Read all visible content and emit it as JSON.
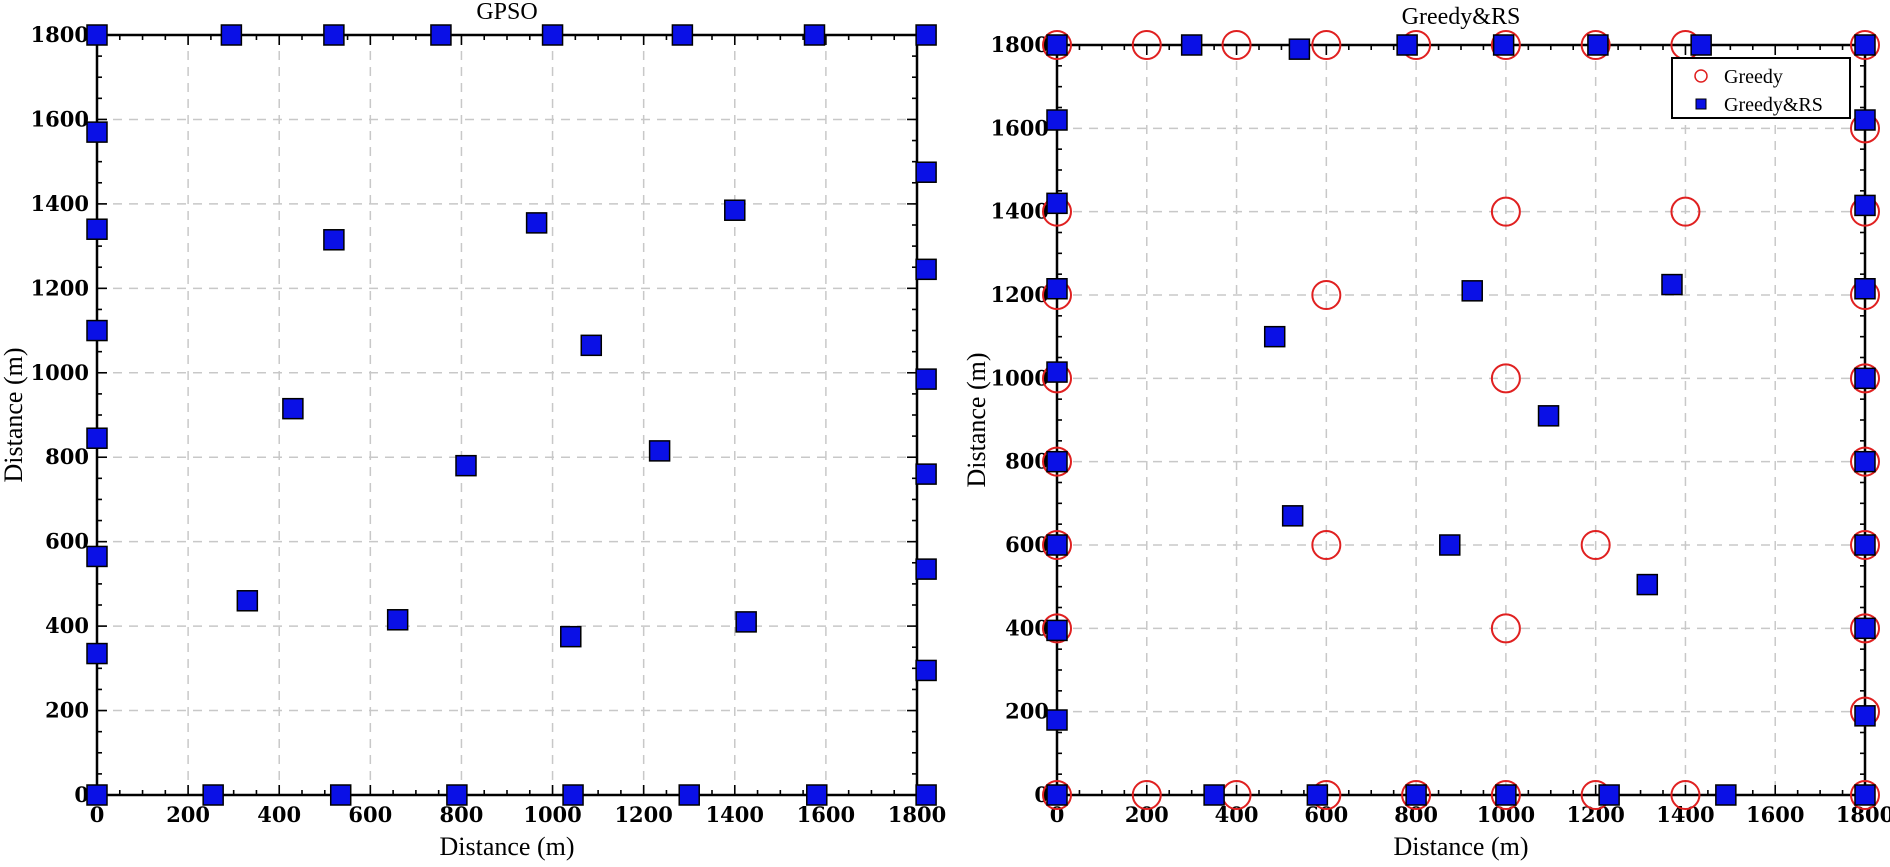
{
  "chart_data": [
    {
      "type": "scatter",
      "title": "GPSO",
      "xlabel": "Distance (m)",
      "ylabel": "Distance (m)",
      "xlim": [
        0,
        1800
      ],
      "ylim": [
        0,
        1800
      ],
      "xticks": [
        0,
        200,
        400,
        600,
        800,
        1000,
        1200,
        1400,
        1600,
        1800
      ],
      "yticks": [
        0,
        200,
        400,
        600,
        800,
        1000,
        1200,
        1400,
        1600,
        1800
      ],
      "grid": true,
      "series": [
        {
          "marker": "square",
          "color": "#0a10e6",
          "points": [
            [
              0,
              1800
            ],
            [
              295,
              1800
            ],
            [
              520,
              1800
            ],
            [
              755,
              1800
            ],
            [
              1000,
              1800
            ],
            [
              1285,
              1800
            ],
            [
              1575,
              1800
            ],
            [
              1820,
              1800
            ],
            [
              0,
              1570
            ],
            [
              0,
              1340
            ],
            [
              0,
              1100
            ],
            [
              0,
              845
            ],
            [
              0,
              565
            ],
            [
              0,
              335
            ],
            [
              0,
              0
            ],
            [
              255,
              0
            ],
            [
              535,
              0
            ],
            [
              790,
              0
            ],
            [
              1045,
              0
            ],
            [
              1300,
              0
            ],
            [
              1580,
              0
            ],
            [
              1820,
              0
            ],
            [
              1820,
              1475
            ],
            [
              1820,
              1245
            ],
            [
              1820,
              985
            ],
            [
              1820,
              760
            ],
            [
              1820,
              535
            ],
            [
              1820,
              295
            ],
            [
              520,
              1315
            ],
            [
              965,
              1355
            ],
            [
              1400,
              1385
            ],
            [
              1085,
              1065
            ],
            [
              430,
              915
            ],
            [
              810,
              780
            ],
            [
              1235,
              815
            ],
            [
              330,
              460
            ],
            [
              660,
              415
            ],
            [
              1040,
              375
            ],
            [
              1425,
              410
            ]
          ]
        }
      ]
    },
    {
      "type": "scatter",
      "title": "Greedy&RS",
      "xlabel": "Distance (m)",
      "ylabel": "Distance (m)",
      "xlim": [
        0,
        1800
      ],
      "ylim": [
        0,
        1800
      ],
      "xticks": [
        0,
        200,
        400,
        600,
        800,
        1000,
        1200,
        1400,
        1600,
        1800
      ],
      "yticks": [
        0,
        200,
        400,
        600,
        800,
        1000,
        1200,
        1400,
        1600,
        1800
      ],
      "grid": true,
      "legend": "top-right",
      "series": [
        {
          "name": "Greedy",
          "marker": "circle-open",
          "color": "#e02020",
          "points": [
            [
              0,
              1800
            ],
            [
              200,
              1800
            ],
            [
              400,
              1800
            ],
            [
              600,
              1800
            ],
            [
              800,
              1800
            ],
            [
              1000,
              1800
            ],
            [
              1200,
              1800
            ],
            [
              1400,
              1800
            ],
            [
              1800,
              1800
            ],
            [
              0,
              1400
            ],
            [
              0,
              1200
            ],
            [
              0,
              1000
            ],
            [
              0,
              800
            ],
            [
              0,
              600
            ],
            [
              0,
              400
            ],
            [
              0,
              0
            ],
            [
              200,
              0
            ],
            [
              400,
              0
            ],
            [
              600,
              0
            ],
            [
              800,
              0
            ],
            [
              1000,
              0
            ],
            [
              1200,
              0
            ],
            [
              1400,
              0
            ],
            [
              1800,
              0
            ],
            [
              1800,
              1600
            ],
            [
              1800,
              1400
            ],
            [
              1800,
              1200
            ],
            [
              1800,
              1000
            ],
            [
              1800,
              800
            ],
            [
              1800,
              600
            ],
            [
              1800,
              400
            ],
            [
              1800,
              200
            ],
            [
              1000,
              1400
            ],
            [
              1400,
              1400
            ],
            [
              600,
              1200
            ],
            [
              1000,
              1000
            ],
            [
              600,
              600
            ],
            [
              1200,
              600
            ],
            [
              1000,
              400
            ]
          ]
        },
        {
          "name": "Greedy&RS",
          "marker": "square",
          "color": "#0a10e6",
          "points": [
            [
              0,
              1800
            ],
            [
              300,
              1800
            ],
            [
              540,
              1790
            ],
            [
              780,
              1800
            ],
            [
              995,
              1800
            ],
            [
              1205,
              1800
            ],
            [
              1435,
              1800
            ],
            [
              1800,
              1800
            ],
            [
              0,
              1620
            ],
            [
              0,
              1420
            ],
            [
              0,
              1215
            ],
            [
              0,
              1015
            ],
            [
              0,
              800
            ],
            [
              0,
              600
            ],
            [
              0,
              395
            ],
            [
              0,
              180
            ],
            [
              0,
              0
            ],
            [
              350,
              0
            ],
            [
              580,
              0
            ],
            [
              800,
              0
            ],
            [
              1000,
              0
            ],
            [
              1230,
              0
            ],
            [
              1490,
              0
            ],
            [
              1800,
              0
            ],
            [
              1800,
              1620
            ],
            [
              1800,
              1415
            ],
            [
              1800,
              1215
            ],
            [
              1800,
              1000
            ],
            [
              1800,
              800
            ],
            [
              1800,
              600
            ],
            [
              1800,
              400
            ],
            [
              1800,
              190
            ],
            [
              485,
              1100
            ],
            [
              925,
              1210
            ],
            [
              1370,
              1225
            ],
            [
              1095,
              910
            ],
            [
              525,
              670
            ],
            [
              875,
              600
            ],
            [
              1315,
              505
            ]
          ]
        }
      ]
    }
  ]
}
